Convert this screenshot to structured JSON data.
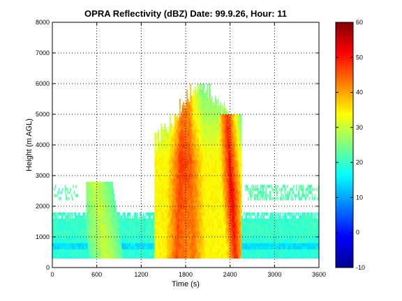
{
  "chart_data": {
    "type": "heatmap",
    "title": "OPRA Reflectivity (dBZ)  Date: 99.9.26, Hour: 11",
    "xlabel": "Time (s)",
    "ylabel": "Height (m AGL)",
    "xlim": [
      0,
      3600
    ],
    "ylim": [
      0,
      8000
    ],
    "xticks": [
      0,
      600,
      1200,
      1800,
      2400,
      3000,
      3600
    ],
    "yticks": [
      0,
      1000,
      2000,
      3000,
      4000,
      5000,
      6000,
      7000,
      8000
    ],
    "grid": true,
    "colorbar": {
      "label": "",
      "range": [
        -10,
        60
      ],
      "ticks": [
        -10,
        0,
        10,
        20,
        30,
        40,
        50,
        60
      ],
      "colormap": "jet"
    },
    "data_region": {
      "height_range_m": [
        300,
        5800
      ],
      "time_range_s": [
        0,
        3600
      ]
    },
    "features": [
      {
        "name": "shallow layer",
        "time_s": [
          0,
          3600
        ],
        "height_m": [
          300,
          1800
        ],
        "dbz": 18
      },
      {
        "name": "weak band",
        "time_s": [
          450,
          1050
        ],
        "height_m": [
          300,
          2800
        ],
        "dbz": 28
      },
      {
        "name": "convective core",
        "time_s": [
          1400,
          2100
        ],
        "height_m": [
          300,
          5800
        ],
        "dbz": 45
      },
      {
        "name": "strong core",
        "time_s": [
          2250,
          2550
        ],
        "height_m": [
          300,
          5000
        ],
        "dbz": 52
      }
    ]
  }
}
